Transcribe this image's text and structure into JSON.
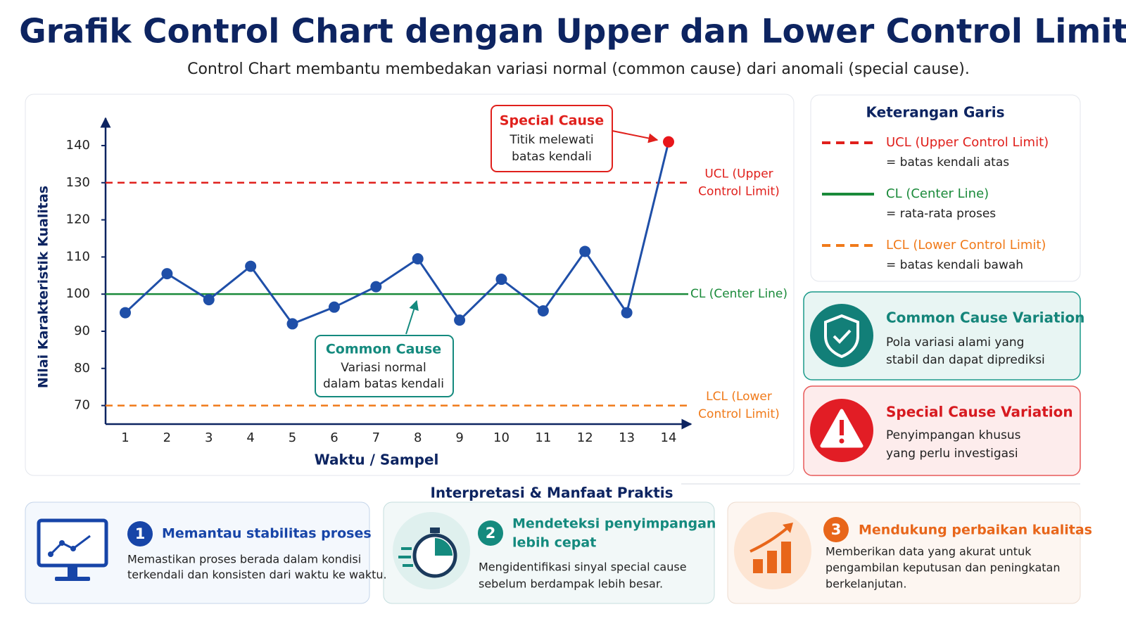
{
  "header": {
    "title": "Grafik Control Chart dengan Upper dan Lower Control Limit",
    "subtitle": "Control Chart membantu membedakan variasi normal (common cause) dari anomali (special cause)."
  },
  "chart_data": {
    "type": "line",
    "x_label": "Waktu / Sampel",
    "y_label": "Nilai Karakteristik Kualitas",
    "categories": [
      "1",
      "2",
      "3",
      "4",
      "5",
      "6",
      "7",
      "8",
      "9",
      "10",
      "11",
      "12",
      "13",
      "14"
    ],
    "values": [
      95,
      105.5,
      98.5,
      107.5,
      92,
      96.5,
      102,
      109.5,
      93,
      104,
      95.5,
      111.5,
      95,
      141
    ],
    "color": "#1f4fa8",
    "highlight_color": "#e8161b",
    "ylim": [
      65,
      147
    ],
    "yticks": [
      70,
      80,
      90,
      100,
      110,
      120,
      130,
      140
    ],
    "control_lines": [
      {
        "value": 130,
        "color": "#e0201c",
        "dashed": true,
        "label_lines": [
          "UCL (Upper",
          "Control Limit)"
        ],
        "name": "UCL (Upper Control Limit)",
        "description": "= batas kendali atas"
      },
      {
        "value": 100,
        "color": "#1a8a3a",
        "dashed": false,
        "label_lines": [
          "CL (Center Line)"
        ],
        "name": "CL (Center Line)",
        "description": "= rata-rata proses"
      },
      {
        "value": 70,
        "color": "#f07a1a",
        "dashed": true,
        "label_lines": [
          "LCL (Lower",
          "Control Limit)"
        ],
        "name": "LCL (Lower Control Limit)",
        "description": "= batas kendali bawah"
      }
    ],
    "legend_title": "Keterangan Garis",
    "annotations": [
      {
        "title": "Special Cause",
        "lines": [
          "Titik melewati",
          "batas kendali"
        ]
      },
      {
        "title": "Common Cause",
        "lines": [
          "Variasi normal",
          "dalam batas kendali"
        ]
      }
    ]
  },
  "cards": [
    {
      "title": "Common Cause Variation",
      "lines": [
        "Pola variasi alami yang",
        "stabil dan dapat diprediksi"
      ]
    },
    {
      "title": "Special Cause Variation",
      "lines": [
        "Penyimpangan khusus",
        "yang perlu investigasi"
      ]
    }
  ],
  "benefits": {
    "title": "Interpretasi & Manfaat Praktis",
    "items": [
      {
        "number": 1,
        "title": [
          "Memantau stabilitas proses"
        ],
        "lines": [
          "Memastikan proses berada dalam kondisi",
          "terkendali dan konsisten dari waktu ke waktu."
        ]
      },
      {
        "number": 2,
        "title": [
          "Mendeteksi penyimpangan",
          "lebih cepat"
        ],
        "lines": [
          "Mengidentifikasi sinyal special cause",
          "sebelum berdampak lebih besar."
        ]
      },
      {
        "number": 3,
        "title": [
          "Mendukung perbaikan kualitas"
        ],
        "lines": [
          "Memberikan data yang akurat untuk",
          "pengambilan keputusan dan peningkatan",
          "berkelanjutan."
        ]
      }
    ]
  }
}
